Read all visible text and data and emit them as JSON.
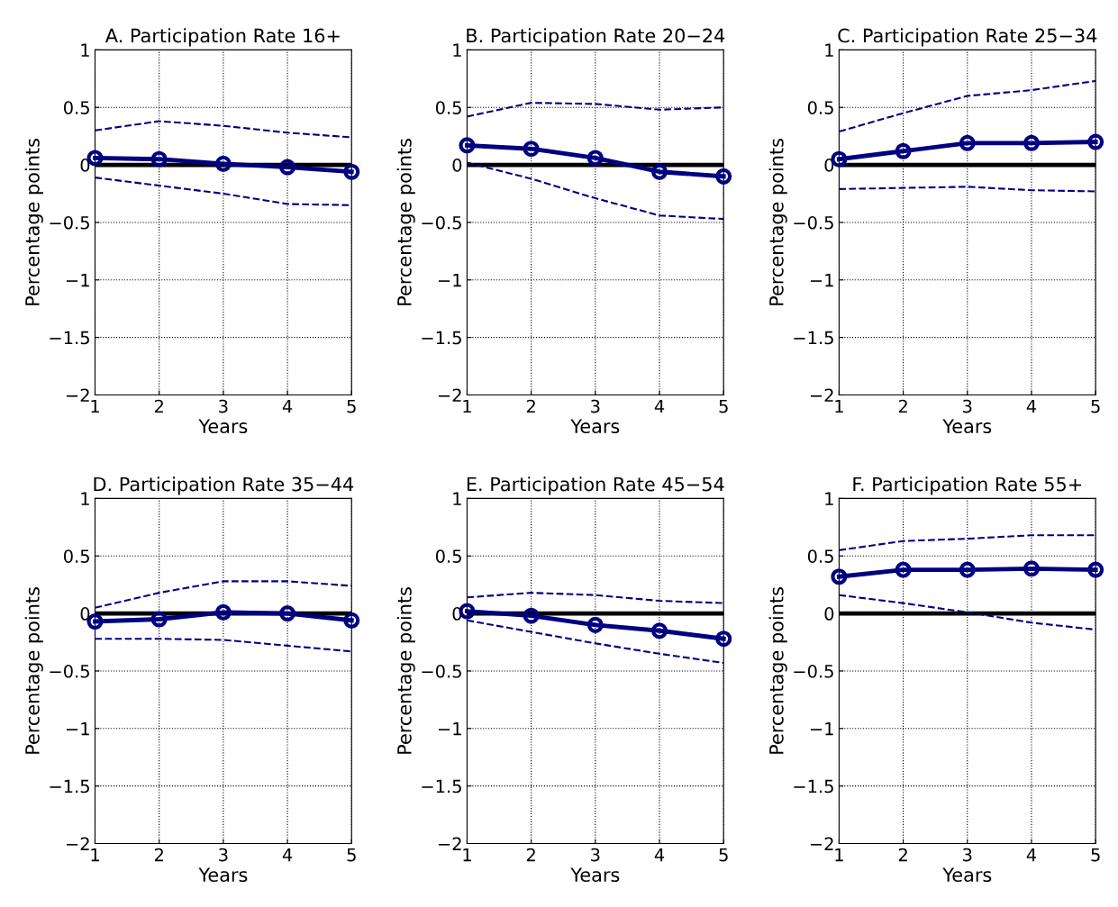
{
  "chart_data": [
    {
      "type": "line",
      "title": "A. Participation Rate 16+",
      "xlabel": "Years",
      "ylabel": "Percentage points",
      "x": [
        1,
        2,
        3,
        4,
        5
      ],
      "xlim": [
        1,
        5
      ],
      "xticks": [
        1,
        2,
        3,
        4,
        5
      ],
      "ylim": [
        -2,
        1
      ],
      "yticks": [
        {
          "value": -2,
          "label": "−2"
        },
        {
          "value": -1.5,
          "label": "−1.5"
        },
        {
          "value": -1,
          "label": "−1"
        },
        {
          "value": -0.5,
          "label": "−0.5"
        },
        0,
        0.5,
        1
      ],
      "grid": true,
      "ref_lines": [
        {
          "axis": "y",
          "value": 0,
          "color": "#000000"
        }
      ],
      "series": [
        {
          "color": "#000080",
          "marker": "circle",
          "line_style": "solid",
          "values": [
            0.06,
            0.05,
            0.01,
            -0.02,
            -0.06
          ]
        },
        {
          "color": "#000080",
          "marker": "none",
          "line_style": "dashed",
          "values": [
            0.3,
            0.38,
            0.34,
            0.28,
            0.24
          ]
        },
        {
          "color": "#000080",
          "marker": "none",
          "line_style": "dashed",
          "values": [
            -0.11,
            -0.18,
            -0.25,
            -0.34,
            -0.35
          ]
        }
      ]
    },
    {
      "type": "line",
      "title": "B. Participation Rate 20−24",
      "xlabel": "Years",
      "ylabel": "Percentage points",
      "x": [
        1,
        2,
        3,
        4,
        5
      ],
      "xlim": [
        1,
        5
      ],
      "xticks": [
        1,
        2,
        3,
        4,
        5
      ],
      "ylim": [
        -2,
        1
      ],
      "yticks": [
        {
          "value": -2,
          "label": "−2"
        },
        {
          "value": -1.5,
          "label": "−1.5"
        },
        {
          "value": -1,
          "label": "−1"
        },
        {
          "value": -0.5,
          "label": "−0.5"
        },
        0,
        0.5,
        1
      ],
      "grid": true,
      "ref_lines": [
        {
          "axis": "y",
          "value": 0,
          "color": "#000000"
        }
      ],
      "series": [
        {
          "color": "#000080",
          "marker": "circle",
          "line_style": "solid",
          "values": [
            0.17,
            0.14,
            0.06,
            -0.06,
            -0.1
          ]
        },
        {
          "color": "#000080",
          "marker": "none",
          "line_style": "dashed",
          "values": [
            0.42,
            0.54,
            0.53,
            0.48,
            0.5
          ]
        },
        {
          "color": "#000080",
          "marker": "none",
          "line_style": "dashed",
          "values": [
            0.02,
            -0.12,
            -0.29,
            -0.44,
            -0.47
          ]
        }
      ]
    },
    {
      "type": "line",
      "title": "C. Participation Rate 25−34",
      "xlabel": "Years",
      "ylabel": "Percentage points",
      "x": [
        1,
        2,
        3,
        4,
        5
      ],
      "xlim": [
        1,
        5
      ],
      "xticks": [
        1,
        2,
        3,
        4,
        5
      ],
      "ylim": [
        -2,
        1
      ],
      "yticks": [
        {
          "value": -2,
          "label": "−2"
        },
        {
          "value": -1.5,
          "label": "−1.5"
        },
        {
          "value": -1,
          "label": "−1"
        },
        {
          "value": -0.5,
          "label": "−0.5"
        },
        0,
        0.5,
        1
      ],
      "grid": true,
      "ref_lines": [
        {
          "axis": "y",
          "value": 0,
          "color": "#000000"
        }
      ],
      "series": [
        {
          "color": "#000080",
          "marker": "circle",
          "line_style": "solid",
          "values": [
            0.05,
            0.12,
            0.19,
            0.19,
            0.2
          ]
        },
        {
          "color": "#000080",
          "marker": "none",
          "line_style": "dashed",
          "values": [
            0.29,
            0.45,
            0.6,
            0.65,
            0.73
          ]
        },
        {
          "color": "#000080",
          "marker": "none",
          "line_style": "dashed",
          "values": [
            -0.21,
            -0.2,
            -0.19,
            -0.22,
            -0.23
          ]
        }
      ]
    },
    {
      "type": "line",
      "title": "D. Participation Rate 35−44",
      "xlabel": "Years",
      "ylabel": "Percentage points",
      "x": [
        1,
        2,
        3,
        4,
        5
      ],
      "xlim": [
        1,
        5
      ],
      "xticks": [
        1,
        2,
        3,
        4,
        5
      ],
      "ylim": [
        -2,
        1
      ],
      "yticks": [
        {
          "value": -2,
          "label": "−2"
        },
        {
          "value": -1.5,
          "label": "−1.5"
        },
        {
          "value": -1,
          "label": "−1"
        },
        {
          "value": -0.5,
          "label": "−0.5"
        },
        0,
        0.5,
        1
      ],
      "grid": true,
      "ref_lines": [
        {
          "axis": "y",
          "value": 0,
          "color": "#000000"
        }
      ],
      "series": [
        {
          "color": "#000080",
          "marker": "circle",
          "line_style": "solid",
          "values": [
            -0.07,
            -0.05,
            0.01,
            0.0,
            -0.06
          ]
        },
        {
          "color": "#000080",
          "marker": "none",
          "line_style": "dashed",
          "values": [
            0.05,
            0.18,
            0.28,
            0.28,
            0.24
          ]
        },
        {
          "color": "#000080",
          "marker": "none",
          "line_style": "dashed",
          "values": [
            -0.22,
            -0.22,
            -0.23,
            -0.28,
            -0.33
          ]
        }
      ]
    },
    {
      "type": "line",
      "title": "E. Participation Rate 45−54",
      "xlabel": "Years",
      "ylabel": "Percentage points",
      "x": [
        1,
        2,
        3,
        4,
        5
      ],
      "xlim": [
        1,
        5
      ],
      "xticks": [
        1,
        2,
        3,
        4,
        5
      ],
      "ylim": [
        -2,
        1
      ],
      "yticks": [
        {
          "value": -2,
          "label": "−2"
        },
        {
          "value": -1.5,
          "label": "−1.5"
        },
        {
          "value": -1,
          "label": "−1"
        },
        {
          "value": -0.5,
          "label": "−0.5"
        },
        0,
        0.5,
        1
      ],
      "grid": true,
      "ref_lines": [
        {
          "axis": "y",
          "value": 0,
          "color": "#000000"
        }
      ],
      "series": [
        {
          "color": "#000080",
          "marker": "circle",
          "line_style": "solid",
          "values": [
            0.02,
            -0.02,
            -0.1,
            -0.15,
            -0.22
          ]
        },
        {
          "color": "#000080",
          "marker": "none",
          "line_style": "dashed",
          "values": [
            0.14,
            0.18,
            0.16,
            0.11,
            0.09
          ]
        },
        {
          "color": "#000080",
          "marker": "none",
          "line_style": "dashed",
          "values": [
            -0.06,
            -0.16,
            -0.26,
            -0.35,
            -0.43
          ]
        }
      ]
    },
    {
      "type": "line",
      "title": "F. Participation Rate 55+",
      "xlabel": "Years",
      "ylabel": "Percentage points",
      "x": [
        1,
        2,
        3,
        4,
        5
      ],
      "xlim": [
        1,
        5
      ],
      "xticks": [
        1,
        2,
        3,
        4,
        5
      ],
      "ylim": [
        -2,
        1
      ],
      "yticks": [
        {
          "value": -2,
          "label": "−2"
        },
        {
          "value": -1.5,
          "label": "−1.5"
        },
        {
          "value": -1,
          "label": "−1"
        },
        {
          "value": -0.5,
          "label": "−0.5"
        },
        0,
        0.5,
        1
      ],
      "grid": true,
      "ref_lines": [
        {
          "axis": "y",
          "value": 0,
          "color": "#000000"
        }
      ],
      "series": [
        {
          "color": "#000080",
          "marker": "circle",
          "line_style": "solid",
          "values": [
            0.32,
            0.38,
            0.38,
            0.39,
            0.38
          ]
        },
        {
          "color": "#000080",
          "marker": "none",
          "line_style": "dashed",
          "values": [
            0.55,
            0.63,
            0.65,
            0.68,
            0.68
          ]
        },
        {
          "color": "#000080",
          "marker": "none",
          "line_style": "dashed",
          "values": [
            0.16,
            0.09,
            0.01,
            -0.08,
            -0.14
          ]
        }
      ]
    }
  ]
}
